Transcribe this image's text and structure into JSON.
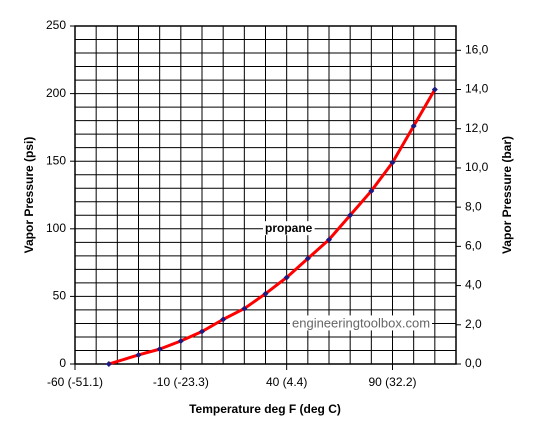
{
  "chart_data": {
    "type": "line",
    "xlabel": "Temperature deg F (deg C)",
    "ylabel": "Vapor Pressure (psi)",
    "y2label": "Vapor Pressure (bar)",
    "annotations": [
      "propane",
      "engineeringtoolbox.com"
    ],
    "x": [
      -44,
      -30,
      -20,
      -10,
      0,
      10,
      20,
      30,
      40,
      50,
      60,
      70,
      80,
      90,
      100,
      110
    ],
    "series": [
      {
        "name": "propane",
        "color": "#ff0000",
        "marker_color": "#1a1a80",
        "values": [
          0,
          6.7,
          11,
          17,
          24,
          33,
          41,
          52,
          64,
          78,
          92,
          110,
          128,
          149,
          176,
          203
        ]
      }
    ],
    "xlim": [
      -60,
      120
    ],
    "xticks": [
      {
        "value": -60,
        "label": "-60 (-51.1)"
      },
      {
        "value": -10,
        "label": "-10 (-23.3)"
      },
      {
        "value": 40,
        "label": "40 (4.4)"
      },
      {
        "value": 90,
        "label": "90 (32.2)"
      }
    ],
    "ylim": [
      0,
      250
    ],
    "yticks": [
      0,
      50,
      100,
      150,
      200,
      250
    ],
    "y2lim": [
      0,
      17.24
    ],
    "y2ticks": [
      {
        "value": 0,
        "label": "0,0"
      },
      {
        "value": 2,
        "label": "2,0"
      },
      {
        "value": 4,
        "label": "4,0"
      },
      {
        "value": 6,
        "label": "6,0"
      },
      {
        "value": 8,
        "label": "8,0"
      },
      {
        "value": 10,
        "label": "10,0"
      },
      {
        "value": 12,
        "label": "12,0"
      },
      {
        "value": 14,
        "label": "14,0"
      },
      {
        "value": 16,
        "label": "16,0"
      }
    ],
    "grid": true,
    "grid_step": {
      "x": 10,
      "y": 10
    }
  }
}
